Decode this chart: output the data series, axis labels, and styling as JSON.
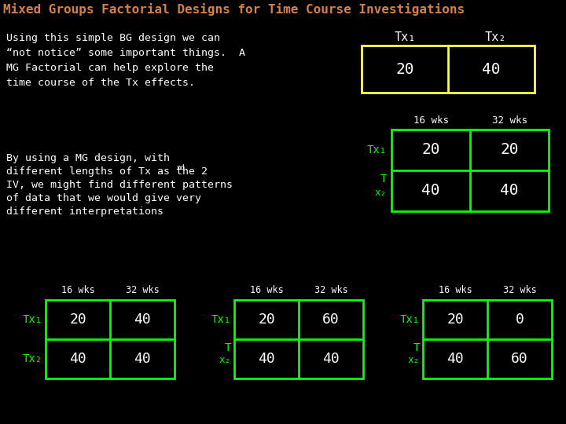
{
  "title": "Mixed Groups Factorial Designs for Time Course Investigations",
  "title_color": "#d4824a",
  "bg_color": "#000000",
  "text_color": "#ffffff",
  "green_color": "#00ff00",
  "yellow_color": "#ffff44",
  "body_text_1": "Using this simple BG design we can\n“not notice” some important things.  A\nMG Factorial can help explore the\ntime course of the Tx effects.",
  "top_table": {
    "col_labels": [
      "Tx₁",
      "Tx₂"
    ],
    "values": [
      20,
      40
    ]
  },
  "middle_table": {
    "col_labels": [
      "16 wks",
      "32 wks"
    ],
    "row_label_1": "Tx₁",
    "row_label_2a": "T",
    "row_label_2b": "x₂",
    "values": [
      [
        20,
        20
      ],
      [
        40,
        40
      ]
    ]
  },
  "bottom_tables": [
    {
      "col_labels": [
        "16 wks",
        "32 wks"
      ],
      "row_label_1": "Tx₁",
      "row_label_2": "Tx₂",
      "row_split": false,
      "values": [
        [
          20,
          40
        ],
        [
          40,
          40
        ]
      ]
    },
    {
      "col_labels": [
        "16 wks",
        "32 wks"
      ],
      "row_label_1": "Tx₁",
      "row_label_2a": "T",
      "row_label_2b": "x₂",
      "row_split": true,
      "values": [
        [
          20,
          60
        ],
        [
          40,
          40
        ]
      ]
    },
    {
      "col_labels": [
        "16 wks",
        "32 wks"
      ],
      "row_label_1": "Tx₁",
      "row_label_2a": "T",
      "row_label_2b": "x₂",
      "row_split": true,
      "values": [
        [
          20,
          0
        ],
        [
          40,
          60
        ]
      ]
    }
  ]
}
